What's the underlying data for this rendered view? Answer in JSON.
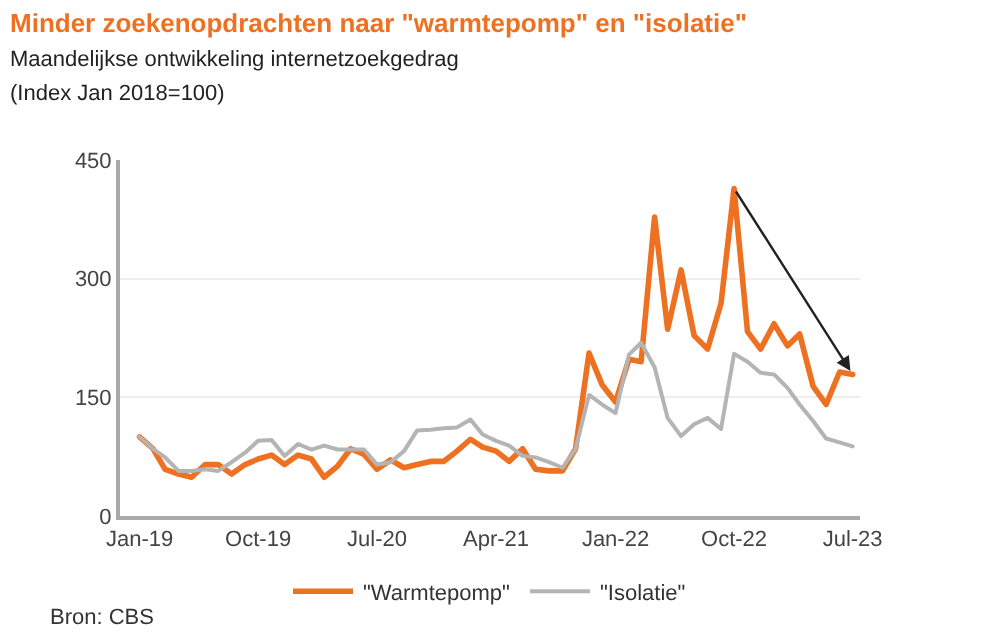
{
  "chart_data": {
    "type": "line",
    "title": "Minder zoekenopdrachten naar \"warmtepomp\" en \"isolatie\"",
    "subtitle": "Maandelijkse ontwikkeling internetzoekgedrag\n(Index Jan 2018=100)",
    "x": [
      "2019-01",
      "2019-02",
      "2019-03",
      "2019-04",
      "2019-05",
      "2019-06",
      "2019-07",
      "2019-08",
      "2019-09",
      "2019-10",
      "2019-11",
      "2019-12",
      "2020-01",
      "2020-02",
      "2020-03",
      "2020-04",
      "2020-05",
      "2020-06",
      "2020-07",
      "2020-08",
      "2020-09",
      "2020-10",
      "2020-11",
      "2020-12",
      "2021-01",
      "2021-02",
      "2021-03",
      "2021-04",
      "2021-05",
      "2021-06",
      "2021-07",
      "2021-08",
      "2021-09",
      "2021-10",
      "2021-11",
      "2021-12",
      "2022-01",
      "2022-02",
      "2022-03",
      "2022-04",
      "2022-05",
      "2022-06",
      "2022-07",
      "2022-08",
      "2022-09",
      "2022-10",
      "2022-11",
      "2022-12",
      "2023-01",
      "2023-02",
      "2023-03",
      "2023-04",
      "2023-05",
      "2023-06",
      "2023-07"
    ],
    "series": [
      {
        "name": "\"Warmtepomp\"",
        "color": "#ee7122",
        "values": [
          100,
          85,
          59,
          53,
          49,
          65,
          65,
          53,
          65,
          72,
          77,
          65,
          77,
          72,
          49,
          63,
          85,
          78,
          59,
          71,
          61,
          65,
          69,
          69,
          82,
          97,
          87,
          82,
          69,
          85,
          59,
          57,
          57,
          85,
          206,
          166,
          144,
          198,
          195,
          378,
          236,
          311,
          228,
          211,
          269,
          414,
          233,
          211,
          243,
          215,
          230,
          164,
          141,
          182,
          179
        ]
      },
      {
        "name": "\"Isolatie\"",
        "color": "#b4b4b4",
        "values": [
          100,
          85,
          74,
          57,
          57,
          59,
          57,
          68,
          80,
          95,
          96,
          76,
          91,
          84,
          89,
          84,
          84,
          84,
          65,
          68,
          82,
          108,
          109,
          111,
          112,
          122,
          103,
          95,
          89,
          76,
          74,
          68,
          61,
          85,
          153,
          141,
          130,
          204,
          219,
          188,
          124,
          101,
          116,
          124,
          110,
          205,
          195,
          181,
          179,
          162,
          141,
          120,
          98,
          93,
          88
        ]
      }
    ],
    "xticks": [
      {
        "value": "2019-01",
        "label": "Jan-19"
      },
      {
        "value": "2019-10",
        "label": "Oct-19"
      },
      {
        "value": "2020-07",
        "label": "Jul-20"
      },
      {
        "value": "2021-04",
        "label": "Apr-21"
      },
      {
        "value": "2022-01",
        "label": "Jan-22"
      },
      {
        "value": "2022-10",
        "label": "Oct-22"
      },
      {
        "value": "2023-07",
        "label": "Jul-23"
      }
    ],
    "xlim": [
      "2018-12-01",
      "2023-08-01"
    ],
    "ylim": [
      0,
      450
    ],
    "yticks": [
      0,
      150,
      300,
      450
    ],
    "grid": "y",
    "legend": "bottom",
    "marker": "none",
    "line_style": "solid",
    "annotations": [
      "Bron: CBS"
    ]
  }
}
